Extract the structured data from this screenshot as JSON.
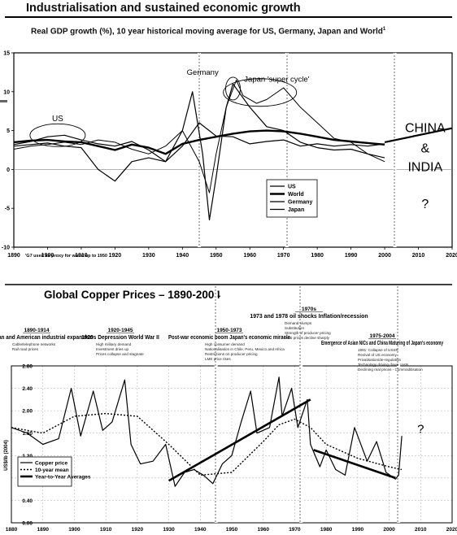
{
  "header": {
    "title": "Industrialisation and sustained economic growth",
    "subtitle": "Real GDP growth (%), 10 year historical moving average for US, Germany, Japan and World",
    "subtitle_mark": "1"
  },
  "chart_data": [
    {
      "type": "line",
      "title": "Real GDP growth (%), 10 year historical moving average for US, Germany, Japan and World",
      "footnote": "'G7 used as proxy for world up to 1950",
      "xlim": [
        1890,
        2020
      ],
      "ylim": [
        -10,
        15
      ],
      "x_ticks": [
        1890,
        1900,
        1910,
        1920,
        1930,
        1940,
        1950,
        1960,
        1970,
        1980,
        1990,
        2000,
        2010,
        2020
      ],
      "y_ticks": [
        -10,
        -5,
        0,
        5,
        10,
        15
      ],
      "grid": false,
      "legend_position": "lower-right-center",
      "annotations": [
        {
          "text": "US",
          "x": 1903,
          "y": 6.2
        },
        {
          "text": "Germany",
          "x": 1946,
          "y": 12.2
        },
        {
          "text": "Japan 'super cycle'",
          "x": 1968,
          "y": 11.3
        },
        {
          "text": "CHINA",
          "x": 2012,
          "y": 4.8
        },
        {
          "text": "&",
          "x": 2012,
          "y": 2.2
        },
        {
          "text": "INDIA",
          "x": 2012,
          "y": -0.2
        },
        {
          "text": "?",
          "x": 2012,
          "y": -5.0
        }
      ],
      "series": [
        {
          "name": "US",
          "x": [
            1890,
            1895,
            1900,
            1905,
            1910,
            1915,
            1920,
            1925,
            1930,
            1935,
            1940,
            1945,
            1950,
            1955,
            1960,
            1965,
            1970,
            1975,
            1980,
            1985,
            1990,
            1995,
            2000
          ],
          "y": [
            3.2,
            3.6,
            4.2,
            4.4,
            3.8,
            3.3,
            3.0,
            3.6,
            2.5,
            1.0,
            3.0,
            6.0,
            4.3,
            4.2,
            3.3,
            3.6,
            3.8,
            3.0,
            3.3,
            3.0,
            3.2,
            3.0,
            3.3
          ]
        },
        {
          "name": "World",
          "x": [
            1890,
            1895,
            1900,
            1905,
            1910,
            1915,
            1920,
            1925,
            1930,
            1935,
            1940,
            1945,
            1950,
            1955,
            1960,
            1965,
            1970,
            1975,
            1980,
            1985,
            1990,
            1995,
            2000
          ],
          "y": [
            3.5,
            3.7,
            3.8,
            3.6,
            3.5,
            3.0,
            2.5,
            3.2,
            2.8,
            2.0,
            3.3,
            3.8,
            4.2,
            4.6,
            4.9,
            5.0,
            4.9,
            4.6,
            4.2,
            3.8,
            3.6,
            3.4,
            3.2
          ]
        },
        {
          "name": "Germany",
          "x": [
            1890,
            1895,
            1900,
            1905,
            1910,
            1915,
            1920,
            1925,
            1930,
            1935,
            1940,
            1943,
            1946,
            1948,
            1950,
            1953,
            1955,
            1960,
            1965,
            1970,
            1975,
            1980,
            1985,
            1990,
            1995,
            2000
          ],
          "y": [
            3.0,
            3.2,
            3.4,
            3.0,
            2.8,
            0.0,
            -1.5,
            1.0,
            1.5,
            1.0,
            5.0,
            10.0,
            2.0,
            -6.5,
            -1.0,
            8.0,
            11.0,
            8.0,
            5.5,
            5.0,
            3.5,
            2.8,
            2.5,
            2.6,
            2.0,
            1.5
          ]
        },
        {
          "name": "Japan",
          "x": [
            1890,
            1895,
            1900,
            1905,
            1910,
            1915,
            1920,
            1925,
            1930,
            1935,
            1940,
            1945,
            1948,
            1950,
            1953,
            1956,
            1958,
            1962,
            1965,
            1970,
            1975,
            1980,
            1985,
            1990,
            1995,
            2000
          ],
          "y": [
            2.6,
            3.0,
            3.2,
            3.5,
            3.2,
            3.8,
            3.5,
            2.6,
            2.0,
            3.0,
            5.0,
            1.0,
            -3.0,
            2.0,
            8.0,
            11.5,
            9.5,
            8.5,
            9.0,
            10.5,
            8.0,
            6.0,
            4.0,
            3.5,
            2.0,
            1.0
          ]
        },
        {
          "name": "",
          "x": [
            2000,
            2020
          ],
          "y": [
            3.5,
            5.3
          ]
        }
      ],
      "vertical_markers": [
        1945,
        1971,
        2003
      ]
    },
    {
      "type": "line",
      "title": "Global Copper Prices – 1890-2004",
      "ylabel": "US$/lb (2004)",
      "xlim": [
        1880,
        2020
      ],
      "ylim": [
        0.0,
        2.8
      ],
      "x_ticks": [
        1880,
        1890,
        1900,
        1910,
        1920,
        1930,
        1940,
        1950,
        1960,
        1970,
        1980,
        1990,
        2000,
        2010,
        2020
      ],
      "y_ticks": [
        0.0,
        0.4,
        0.8,
        1.2,
        1.6,
        2.0,
        2.4,
        2.8
      ],
      "y_tick_labels": [
        "0.00",
        "0.40",
        "0.80",
        "1.20",
        "1.60",
        "2.00",
        "2.40",
        "2.80"
      ],
      "grid": true,
      "legend_position": "lower-left",
      "eras": [
        {
          "period": "1890-1914",
          "title": "European and American industrial expansion",
          "notes": [
            "Cable/telephone networks",
            "Rail road prices"
          ]
        },
        {
          "period": "1920-1945",
          "title": "1920s Depression World War II",
          "notes": [
            "High military demand",
            "Investment dries up",
            "Prices collapse and stagnate"
          ]
        },
        {
          "period": "1950-1973",
          "title": "Post-war economic boom Japan's economic miracle",
          "notes": [
            "High consumer demand",
            "Nationalisation in Chile, Peru, Mexico and Africa",
            "Restrictions on producer pricing",
            "LME price rises"
          ]
        },
        {
          "period": "1970s",
          "title": "1973 and 1978 oil shocks Inflation/recession",
          "notes": [
            "Demand slumps",
            "Substitution",
            "Strength of producer pricing",
            "Real prices decline sharply"
          ]
        },
        {
          "period": "1975-2004",
          "title": "Emergence of Asian NICs and China Maturing of Japan's economy",
          "notes": [
            "1991: Collapse of USSR",
            "Revival of US economy",
            "Privatisation/de-regulation",
            "Technology driving down costs",
            "Declining real prices - Commoditisation"
          ]
        }
      ],
      "annotations": [
        {
          "text": "?",
          "x": 2010,
          "y": 1.6
        }
      ],
      "series": [
        {
          "name": "Copper price",
          "x": [
            1880,
            1885,
            1890,
            1895,
            1899,
            1902,
            1906,
            1909,
            1912,
            1916,
            1918,
            1921,
            1925,
            1929,
            1932,
            1935,
            1938,
            1941,
            1944,
            1947,
            1950,
            1953,
            1956,
            1958,
            1962,
            1965,
            1966,
            1969,
            1971,
            1974,
            1975,
            1978,
            1980,
            1983,
            1986,
            1989,
            1993,
            1996,
            1999,
            2002,
            2003,
            2004
          ],
          "y": [
            1.7,
            1.6,
            1.4,
            1.5,
            2.4,
            1.55,
            2.35,
            1.65,
            1.8,
            2.55,
            1.4,
            1.05,
            1.1,
            1.4,
            0.65,
            0.9,
            0.95,
            0.85,
            0.7,
            1.05,
            1.2,
            1.8,
            2.35,
            1.6,
            1.7,
            2.6,
            1.9,
            2.4,
            1.7,
            2.2,
            1.4,
            1.0,
            1.3,
            0.95,
            0.85,
            1.7,
            1.1,
            1.45,
            0.9,
            0.78,
            0.85,
            1.55
          ]
        },
        {
          "name": "10-year mean",
          "x": [
            1880,
            1890,
            1900,
            1910,
            1920,
            1930,
            1940,
            1950,
            1960,
            1965,
            1970,
            1975,
            1980,
            1990,
            2000,
            2004
          ],
          "y": [
            1.7,
            1.6,
            1.9,
            1.95,
            1.9,
            1.4,
            0.85,
            0.9,
            1.45,
            1.75,
            1.85,
            1.7,
            1.4,
            1.15,
            1.0,
            0.95
          ]
        },
        {
          "name": "Year-to-Year Averages",
          "x": [
            1930,
            1975
          ],
          "y": [
            0.75,
            2.2
          ]
        },
        {
          "name": "",
          "x": [
            1976,
            2002
          ],
          "y": [
            1.3,
            0.8
          ]
        }
      ],
      "vertical_markers": [
        1945,
        1972,
        2003
      ]
    }
  ]
}
